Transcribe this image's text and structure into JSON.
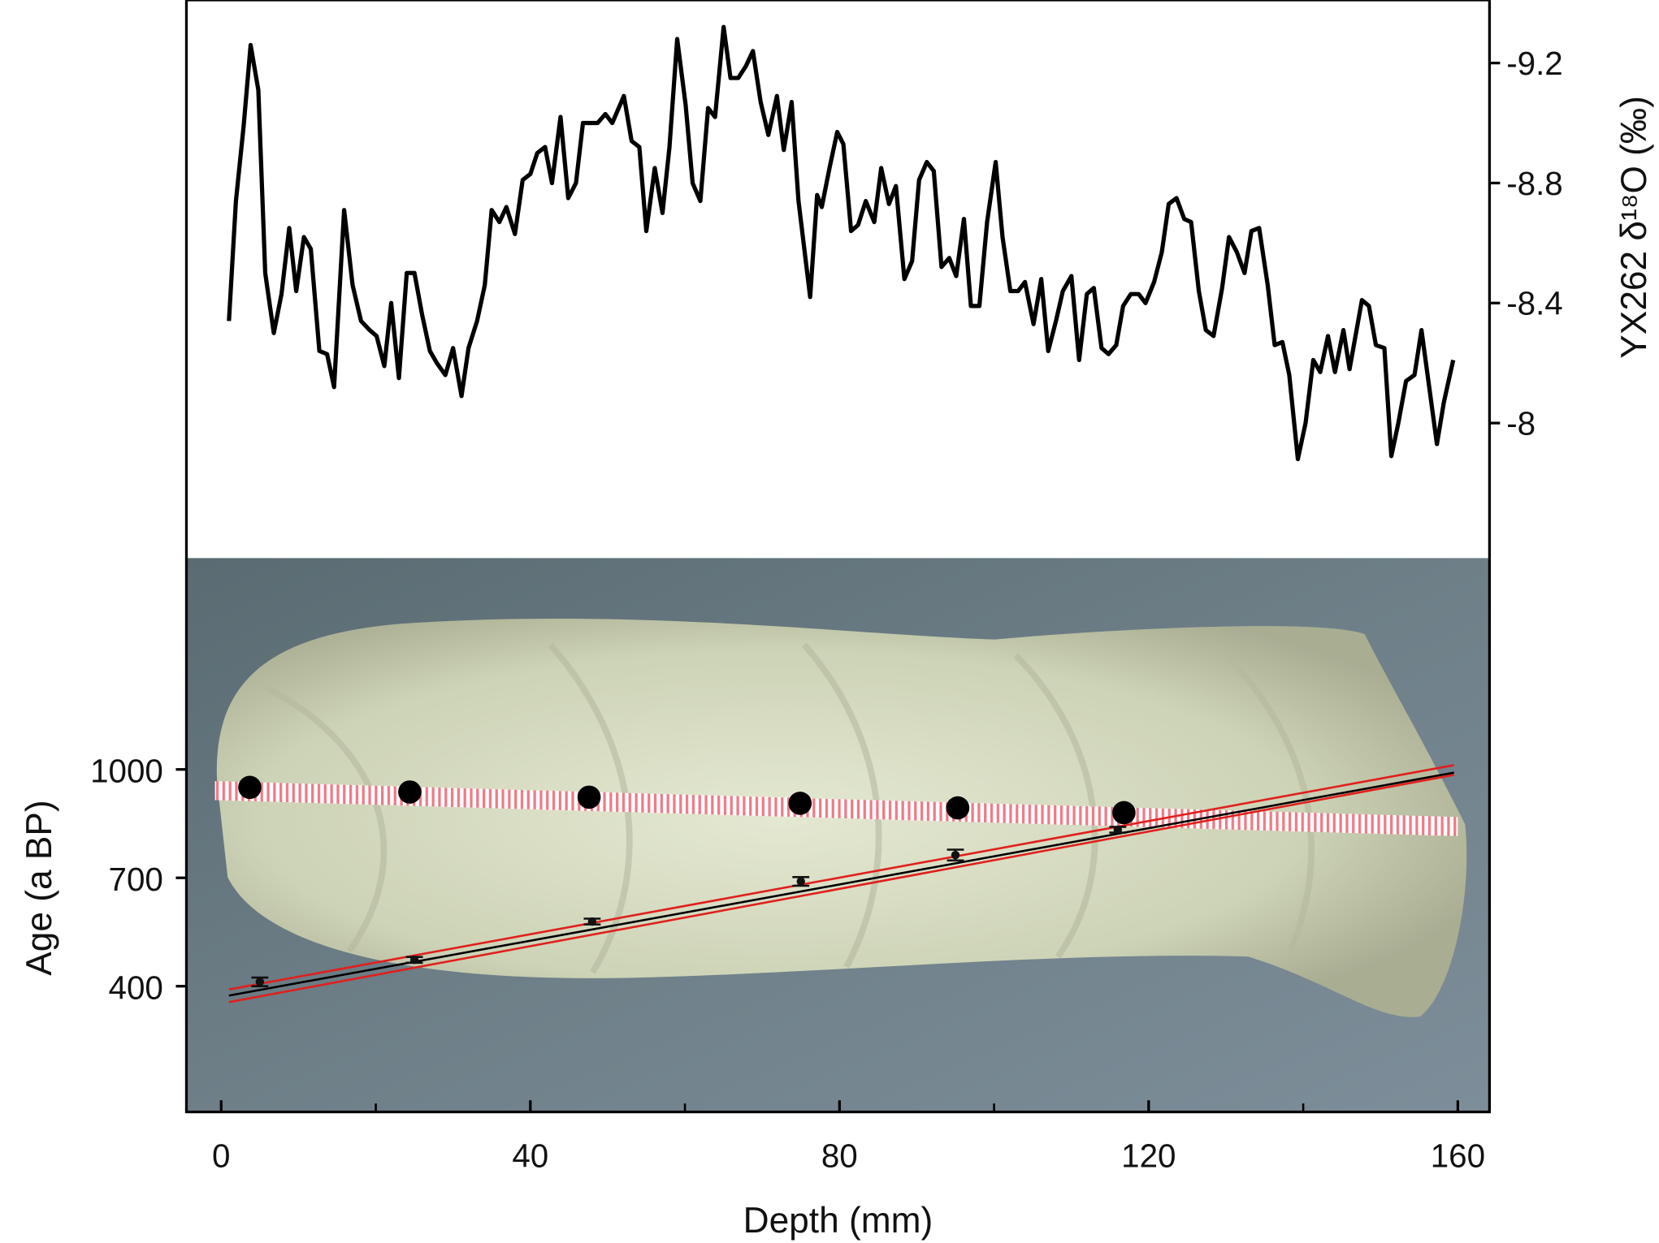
{
  "chart_data": [
    {
      "type": "line",
      "color": "#000000",
      "ylabel": "YX262 δ¹⁸O (‰)",
      "xlim": [
        -4.5,
        164.1
      ],
      "ylim": [
        -7.55,
        -9.41
      ],
      "yticks": [
        -9.2,
        -8.8,
        -8.4,
        -8
      ],
      "x": [
        1.0,
        1.9,
        2.9,
        3.8,
        4.8,
        5.7,
        6.8,
        7.8,
        8.8,
        9.7,
        10.7,
        11.6,
        12.7,
        13.7,
        14.6,
        15.9,
        17.0,
        18.1,
        19.2,
        20.1,
        21.1,
        22.0,
        23.0,
        24.0,
        25.0,
        26.0,
        27.0,
        27.9,
        29.0,
        30.0,
        31.1,
        32.0,
        33.1,
        34.1,
        35.0,
        36.0,
        36.9,
        38.0,
        39.0,
        40.0,
        40.9,
        41.9,
        42.8,
        43.9,
        44.9,
        45.9,
        46.8,
        47.8,
        48.7,
        49.7,
        50.6,
        52.1,
        53.1,
        54.1,
        55.0,
        56.1,
        57.1,
        58.0,
        59.0,
        60.1,
        61.0,
        62.0,
        63.0,
        63.9,
        65.0,
        65.9,
        66.9,
        67.9,
        68.8,
        69.8,
        70.8,
        71.9,
        72.8,
        73.8,
        74.7,
        76.2,
        77.1,
        77.7,
        78.7,
        79.7,
        80.5,
        81.5,
        82.4,
        83.4,
        84.5,
        85.4,
        86.4,
        87.3,
        88.4,
        89.4,
        90.3,
        91.3,
        92.2,
        93.2,
        94.2,
        95.1,
        96.1,
        97.0,
        98.1,
        99.1,
        100.2,
        101.1,
        102.1,
        103.1,
        104.0,
        105.1,
        106.1,
        107.0,
        108.0,
        108.9,
        110.0,
        111.0,
        112.0,
        112.9,
        113.9,
        114.8,
        115.8,
        116.7,
        117.7,
        118.7,
        119.6,
        120.7,
        121.7,
        122.6,
        123.6,
        124.6,
        125.5,
        126.5,
        127.4,
        128.4,
        129.5,
        130.4,
        131.4,
        132.4,
        133.3,
        134.3,
        135.4,
        136.3,
        137.3,
        138.2,
        139.3,
        140.3,
        141.3,
        142.2,
        143.2,
        144.1,
        145.2,
        146.0,
        147.6,
        148.5,
        149.4,
        150.5,
        151.4,
        152.3,
        153.3,
        154.4,
        155.3,
        156.3,
        157.3,
        158.2,
        159.4
      ],
      "values": [
        -8.34,
        -8.74,
        -8.99,
        -9.26,
        -9.11,
        -8.5,
        -8.3,
        -8.43,
        -8.65,
        -8.44,
        -8.62,
        -8.58,
        -8.24,
        -8.23,
        -8.12,
        -8.71,
        -8.46,
        -8.34,
        -8.31,
        -8.29,
        -8.19,
        -8.4,
        -8.15,
        -8.5,
        -8.5,
        -8.36,
        -8.24,
        -8.2,
        -8.16,
        -8.25,
        -8.09,
        -8.25,
        -8.34,
        -8.46,
        -8.71,
        -8.67,
        -8.72,
        -8.63,
        -8.81,
        -8.83,
        -8.9,
        -8.92,
        -8.8,
        -9.02,
        -8.75,
        -8.8,
        -9.0,
        -9.0,
        -9.0,
        -9.03,
        -9.0,
        -9.09,
        -8.94,
        -8.92,
        -8.64,
        -8.85,
        -8.7,
        -8.92,
        -9.28,
        -9.06,
        -8.8,
        -8.74,
        -9.05,
        -9.02,
        -9.32,
        -9.15,
        -9.15,
        -9.19,
        -9.24,
        -9.07,
        -8.96,
        -9.09,
        -8.91,
        -9.07,
        -8.74,
        -8.42,
        -8.76,
        -8.72,
        -8.85,
        -8.97,
        -8.93,
        -8.64,
        -8.66,
        -8.74,
        -8.67,
        -8.85,
        -8.73,
        -8.79,
        -8.48,
        -8.54,
        -8.81,
        -8.87,
        -8.84,
        -8.52,
        -8.55,
        -8.49,
        -8.68,
        -8.39,
        -8.39,
        -8.67,
        -8.87,
        -8.62,
        -8.44,
        -8.44,
        -8.47,
        -8.33,
        -8.48,
        -8.24,
        -8.34,
        -8.44,
        -8.49,
        -8.21,
        -8.43,
        -8.45,
        -8.25,
        -8.23,
        -8.26,
        -8.39,
        -8.43,
        -8.43,
        -8.4,
        -8.47,
        -8.57,
        -8.73,
        -8.75,
        -8.68,
        -8.67,
        -8.44,
        -8.31,
        -8.29,
        -8.45,
        -8.62,
        -8.57,
        -8.5,
        -8.64,
        -8.65,
        -8.46,
        -8.26,
        -8.27,
        -8.16,
        -7.88,
        -8.0,
        -8.21,
        -8.17,
        -8.29,
        -8.17,
        -8.31,
        -8.18,
        -8.41,
        -8.39,
        -8.26,
        -8.25,
        -7.89,
        -8.0,
        -8.14,
        -8.16,
        -8.31,
        -8.12,
        -7.93,
        -8.07,
        -8.21
      ]
    },
    {
      "type": "scatter",
      "color": "#111111",
      "xlabel": "Depth (mm)",
      "ylabel": "Age (a BP)",
      "xlim": [
        -4.5,
        164.1
      ],
      "xticks": [
        0,
        40,
        80,
        120,
        160
      ],
      "xminorticks": [
        20,
        60,
        100,
        140
      ],
      "ylim": [
        52,
        1585
      ],
      "yticks": [
        400,
        700,
        1000
      ],
      "x": [
        5,
        25,
        48,
        75,
        95,
        116
      ],
      "values": [
        412,
        473,
        579,
        690,
        763,
        833
      ],
      "errors": [
        12,
        8,
        8,
        12,
        15,
        8
      ],
      "lines": [
        {
          "color": "#e0201c",
          "x": [
            1,
            159.5
          ],
          "values": [
            391,
            1012
          ]
        },
        {
          "color": "#e0201c",
          "x": [
            1,
            159.5
          ],
          "values": [
            356,
            985
          ]
        },
        {
          "color": "#000000",
          "x": [
            1,
            159.5
          ],
          "values": [
            374,
            991
          ]
        }
      ],
      "sample_depths": [
        3.7,
        24.4,
        47.6,
        74.9,
        95.3,
        116.8
      ]
    }
  ]
}
